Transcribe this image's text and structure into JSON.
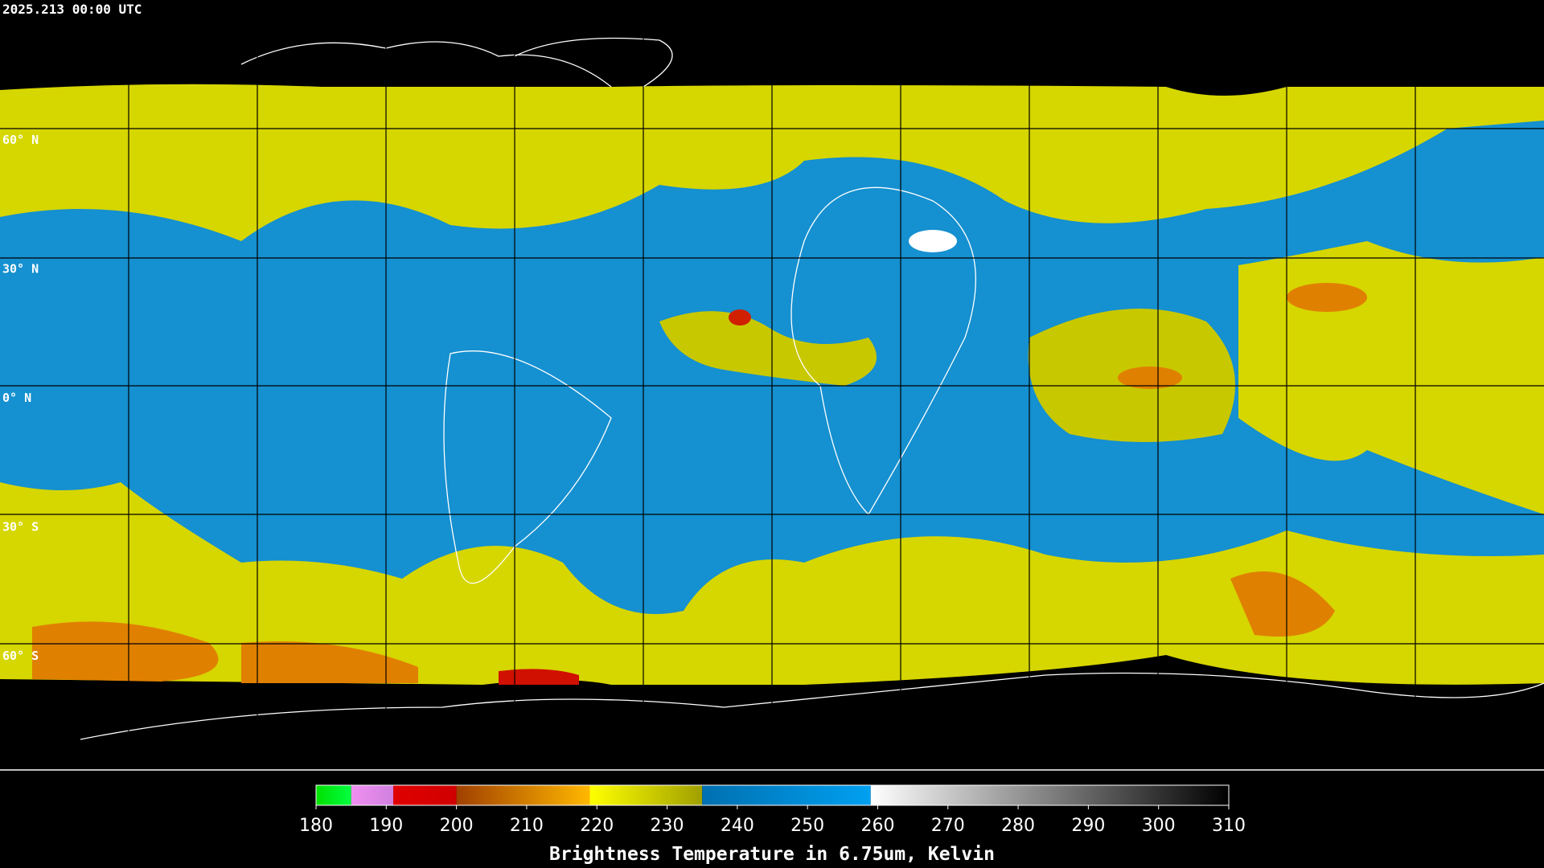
{
  "header": {
    "timestamp": "2025.213 00:00 UTC"
  },
  "map": {
    "lat_labels": [
      "60° N",
      "30° N",
      "0° N",
      "30° S",
      "60° S"
    ]
  },
  "colorbar": {
    "range": [
      180,
      310
    ],
    "ticks": [
      180,
      190,
      200,
      210,
      220,
      230,
      240,
      250,
      260,
      270,
      280,
      290,
      300,
      310
    ],
    "label": "Brightness Temperature in 6.75um, Kelvin",
    "segments": [
      {
        "from": 180,
        "to": 185,
        "colors": [
          "#00e000",
          "#00ff40"
        ]
      },
      {
        "from": 185,
        "to": 191,
        "colors": [
          "#f090f0",
          "#d080e0"
        ]
      },
      {
        "from": 191,
        "to": 200,
        "colors": [
          "#e00000",
          "#d00000"
        ]
      },
      {
        "from": 200,
        "to": 219,
        "colors": [
          "#a04000",
          "#ffb800"
        ]
      },
      {
        "from": 219,
        "to": 235,
        "colors": [
          "#ffff00",
          "#a0a000"
        ]
      },
      {
        "from": 235,
        "to": 259,
        "colors": [
          "#0070b0",
          "#00a0f0"
        ]
      },
      {
        "from": 259,
        "to": 310,
        "colors": [
          "#ffffff",
          "#000000"
        ]
      }
    ]
  }
}
